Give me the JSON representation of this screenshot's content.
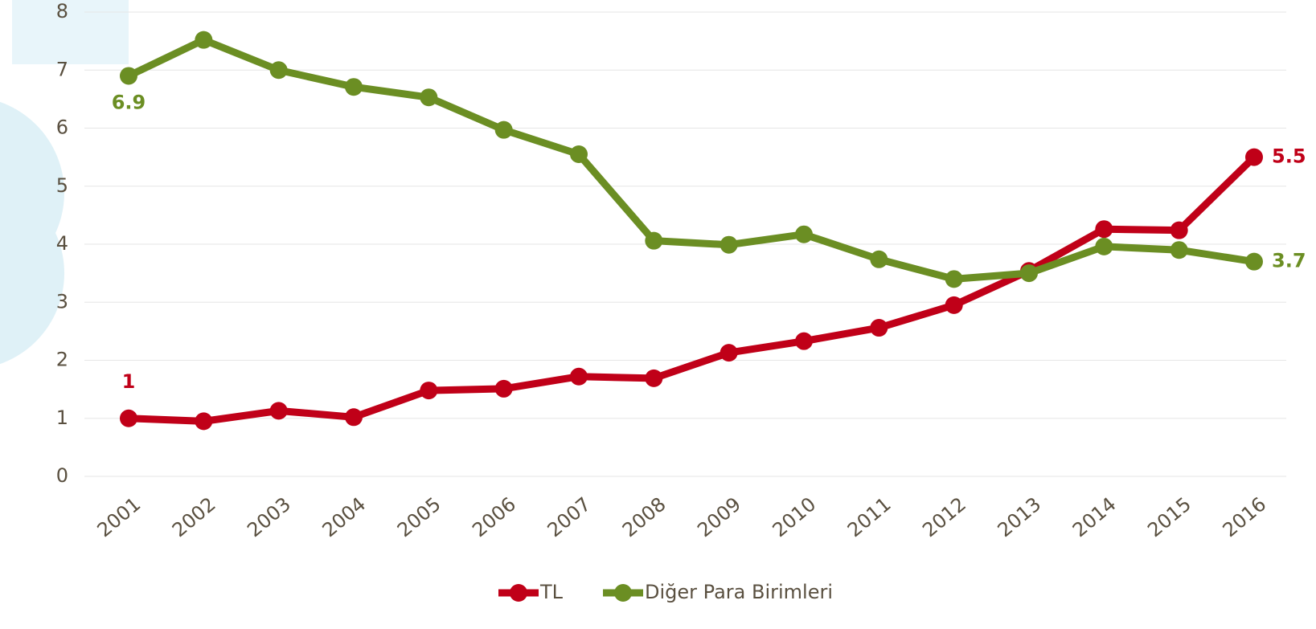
{
  "chart_data": {
    "type": "line",
    "categories": [
      "2001",
      "2002",
      "2003",
      "2004",
      "2005",
      "2006",
      "2007",
      "2008",
      "2009",
      "2010",
      "2011",
      "2012",
      "2013",
      "2014",
      "2015",
      "2016"
    ],
    "series": [
      {
        "name": "TL",
        "color": "#c00018",
        "values": [
          1.0,
          0.95,
          1.13,
          1.02,
          1.48,
          1.51,
          1.72,
          1.69,
          2.13,
          2.33,
          2.56,
          2.95,
          3.54,
          4.26,
          4.24,
          5.5
        ],
        "value_labels": [
          "1",
          null,
          null,
          null,
          null,
          null,
          null,
          null,
          null,
          null,
          null,
          null,
          null,
          null,
          null,
          "5.5"
        ]
      },
      {
        "name": "Diğer Para Birimleri",
        "color": "#6b8e23",
        "values": [
          6.9,
          7.52,
          7.0,
          6.71,
          6.53,
          5.97,
          5.55,
          4.06,
          3.99,
          4.17,
          3.74,
          3.4,
          3.5,
          3.96,
          3.9,
          3.7
        ],
        "value_labels": [
          "6.9",
          null,
          null,
          null,
          null,
          null,
          null,
          null,
          null,
          null,
          null,
          null,
          null,
          null,
          null,
          "3.7"
        ]
      }
    ],
    "ylim": [
      0,
      8
    ],
    "yticks": [
      0,
      1,
      2,
      3,
      4,
      5,
      6,
      7,
      8
    ],
    "grid": true,
    "legend": "bottom"
  }
}
